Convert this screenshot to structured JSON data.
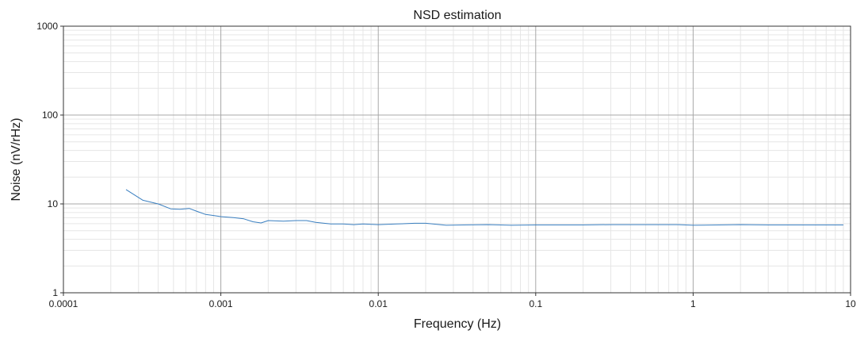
{
  "chart_data": {
    "type": "line",
    "title": "NSD estimation",
    "xlabel": "Frequency (Hz)",
    "ylabel": "Noise (nV/rHz)",
    "xscale": "log",
    "yscale": "log",
    "xlim": [
      0.0001,
      10
    ],
    "ylim": [
      1,
      1000
    ],
    "grid": true,
    "x_ticks": [
      "0.0001",
      "0.001",
      "0.01",
      "0.1",
      "1",
      "10"
    ],
    "y_ticks": [
      "1",
      "10",
      "100",
      "1000"
    ],
    "line_color": "#3a7fc0",
    "series": [
      {
        "x": [
          0.00025,
          0.00032,
          0.0004,
          0.00048,
          0.00055,
          0.00063,
          0.0007,
          0.0008,
          0.0009,
          0.001,
          0.0012,
          0.0014,
          0.0016,
          0.0018,
          0.002,
          0.0025,
          0.003,
          0.0035,
          0.004,
          0.005,
          0.006,
          0.007,
          0.008,
          0.01,
          0.013,
          0.017,
          0.02,
          0.027,
          0.035,
          0.05,
          0.07,
          0.1,
          0.2,
          0.3,
          0.5,
          0.8,
          1,
          2,
          3,
          5,
          9
        ],
        "y": [
          14.5,
          11.0,
          10.0,
          8.8,
          8.7,
          8.9,
          8.3,
          7.6,
          7.4,
          7.2,
          7.0,
          6.8,
          6.3,
          6.1,
          6.5,
          6.4,
          6.5,
          6.5,
          6.2,
          5.95,
          5.95,
          5.85,
          5.95,
          5.85,
          5.95,
          6.05,
          6.05,
          5.75,
          5.8,
          5.85,
          5.75,
          5.8,
          5.8,
          5.85,
          5.85,
          5.85,
          5.75,
          5.85,
          5.8,
          5.8,
          5.8
        ]
      }
    ]
  }
}
